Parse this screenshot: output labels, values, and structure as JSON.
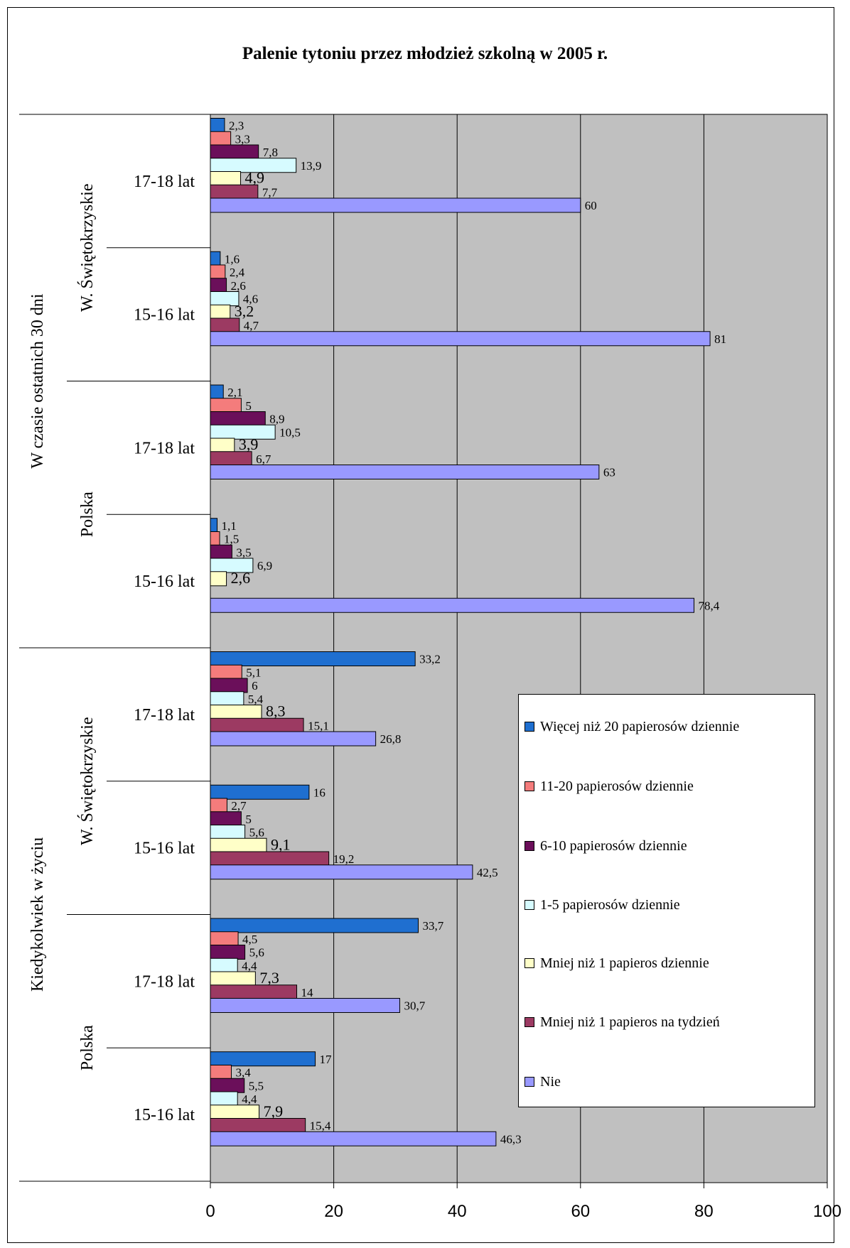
{
  "chart_data": {
    "type": "bar",
    "orientation": "horizontal",
    "title": "Palenie tytoniu przez młodzież szkolną w 2005 r.",
    "xlim": [
      0,
      100
    ],
    "xticks": [
      0,
      20,
      40,
      60,
      80,
      100
    ],
    "grid": true,
    "legend_position": "right",
    "groups": [
      {
        "level1": "W czasie ostatnich 30 dni",
        "items": [
          {
            "region": "W. Świętokrzyskie",
            "age": "17-18 lat",
            "values": [
              2.3,
              3.3,
              7.8,
              13.9,
              4.9,
              7.7,
              60
            ],
            "labels": [
              "2,3",
              "3,3",
              "7,8",
              "13,9",
              "4,9",
              "7,7",
              "60"
            ]
          },
          {
            "region": "W. Świętokrzyskie",
            "age": "15-16 lat",
            "values": [
              1.6,
              2.4,
              2.6,
              4.6,
              3.2,
              4.7,
              81
            ],
            "labels": [
              "1,6",
              "2,4",
              "2,6",
              "4,6",
              "3,2",
              "4,7",
              "81"
            ]
          },
          {
            "region": "Polska",
            "age": "17-18 lat",
            "values": [
              2.1,
              5,
              8.9,
              10.5,
              3.9,
              6.7,
              63
            ],
            "labels": [
              "2,1",
              "5",
              "8,9",
              "10,5",
              "3,9",
              "6,7",
              "63"
            ]
          },
          {
            "region": "Polska",
            "age": "15-16 lat",
            "values": [
              1.1,
              1.5,
              3.5,
              6.9,
              2.6,
              null,
              78.4
            ],
            "labels": [
              "1,1",
              "1,5",
              "3,5",
              "6,9",
              "2,6",
              "",
              "78,4"
            ]
          }
        ]
      },
      {
        "level1": "Kiedykolwiek w życiu",
        "items": [
          {
            "region": "W. Świętokrzyskie",
            "age": "17-18 lat",
            "values": [
              33.2,
              5.1,
              6,
              5.4,
              8.3,
              15.1,
              26.8
            ],
            "labels": [
              "33,2",
              "5,1",
              "6",
              "5,4",
              "8,3",
              "15,1",
              "26,8"
            ]
          },
          {
            "region": "W. Świętokrzyskie",
            "age": "15-16 lat",
            "values": [
              16,
              2.7,
              5,
              5.6,
              9.1,
              19.2,
              42.5
            ],
            "labels": [
              "16",
              "2,7",
              "5",
              "5,6",
              "9,1",
              "19,2",
              "42,5"
            ]
          },
          {
            "region": "Polska",
            "age": "17-18 lat",
            "values": [
              33.7,
              4.5,
              5.6,
              4.4,
              7.3,
              14,
              30.7
            ],
            "labels": [
              "33,7",
              "4,5",
              "5,6",
              "4,4",
              "7,3",
              "14",
              "30,7"
            ]
          },
          {
            "region": "Polska",
            "age": "15-16 lat",
            "values": [
              17,
              3.4,
              5.5,
              4.4,
              7.9,
              15.4,
              46.3
            ],
            "labels": [
              "17",
              "3,4",
              "5,5",
              "4,4",
              "7,9",
              "15,4",
              "46,3"
            ]
          }
        ]
      }
    ],
    "series": [
      {
        "name": "Więcej niż 20 papierosów dziennie",
        "color": "#1F6FD0"
      },
      {
        "name": "11-20 papierosów dziennie",
        "color": "#F47C7C"
      },
      {
        "name": "6-10 papierosów dziennie",
        "color": "#6B0F5A"
      },
      {
        "name": "1-5 papierosów dziennie",
        "color": "#D6FBFF"
      },
      {
        "name": "Mniej niż 1 papieros dziennie",
        "color": "#FFFFC8"
      },
      {
        "name": "Mniej niż 1 papieros na tydzień",
        "color": "#9C3A62"
      },
      {
        "name": "Nie",
        "color": "#9999FF"
      }
    ],
    "plot_background": "#C0C0C0"
  }
}
